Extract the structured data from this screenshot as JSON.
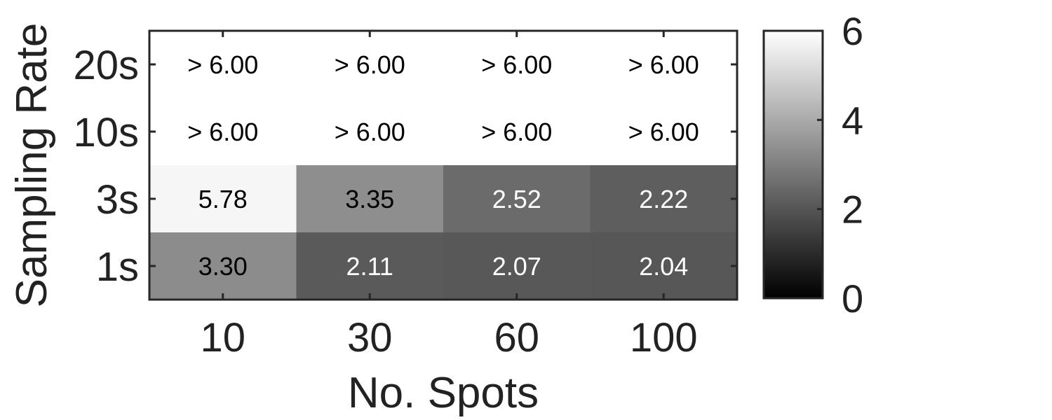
{
  "chart_data": {
    "type": "heatmap",
    "title": "",
    "xlabel": "No. Spots",
    "ylabel": "Sampling Rate",
    "x_categories": [
      "10",
      "30",
      "60",
      "100"
    ],
    "y_categories": [
      "20s",
      "10s",
      "3s",
      "1s"
    ],
    "values": [
      [
        6.5,
        6.5,
        6.5,
        6.5
      ],
      [
        6.5,
        6.5,
        6.5,
        6.5
      ],
      [
        5.78,
        3.35,
        2.52,
        2.22
      ],
      [
        3.3,
        2.11,
        2.07,
        2.04
      ]
    ],
    "cell_labels": [
      [
        "> 6.00",
        "> 6.00",
        "> 6.00",
        "> 6.00"
      ],
      [
        "> 6.00",
        "> 6.00",
        "> 6.00",
        "> 6.00"
      ],
      [
        "5.78",
        "3.35",
        "2.52",
        "2.22"
      ],
      [
        "3.30",
        "2.11",
        "2.07",
        "2.04"
      ]
    ],
    "colormap": "gray",
    "color_range": [
      0,
      6
    ],
    "colorbar_ticks": [
      "0",
      "2",
      "4",
      "6"
    ],
    "grid": false
  }
}
